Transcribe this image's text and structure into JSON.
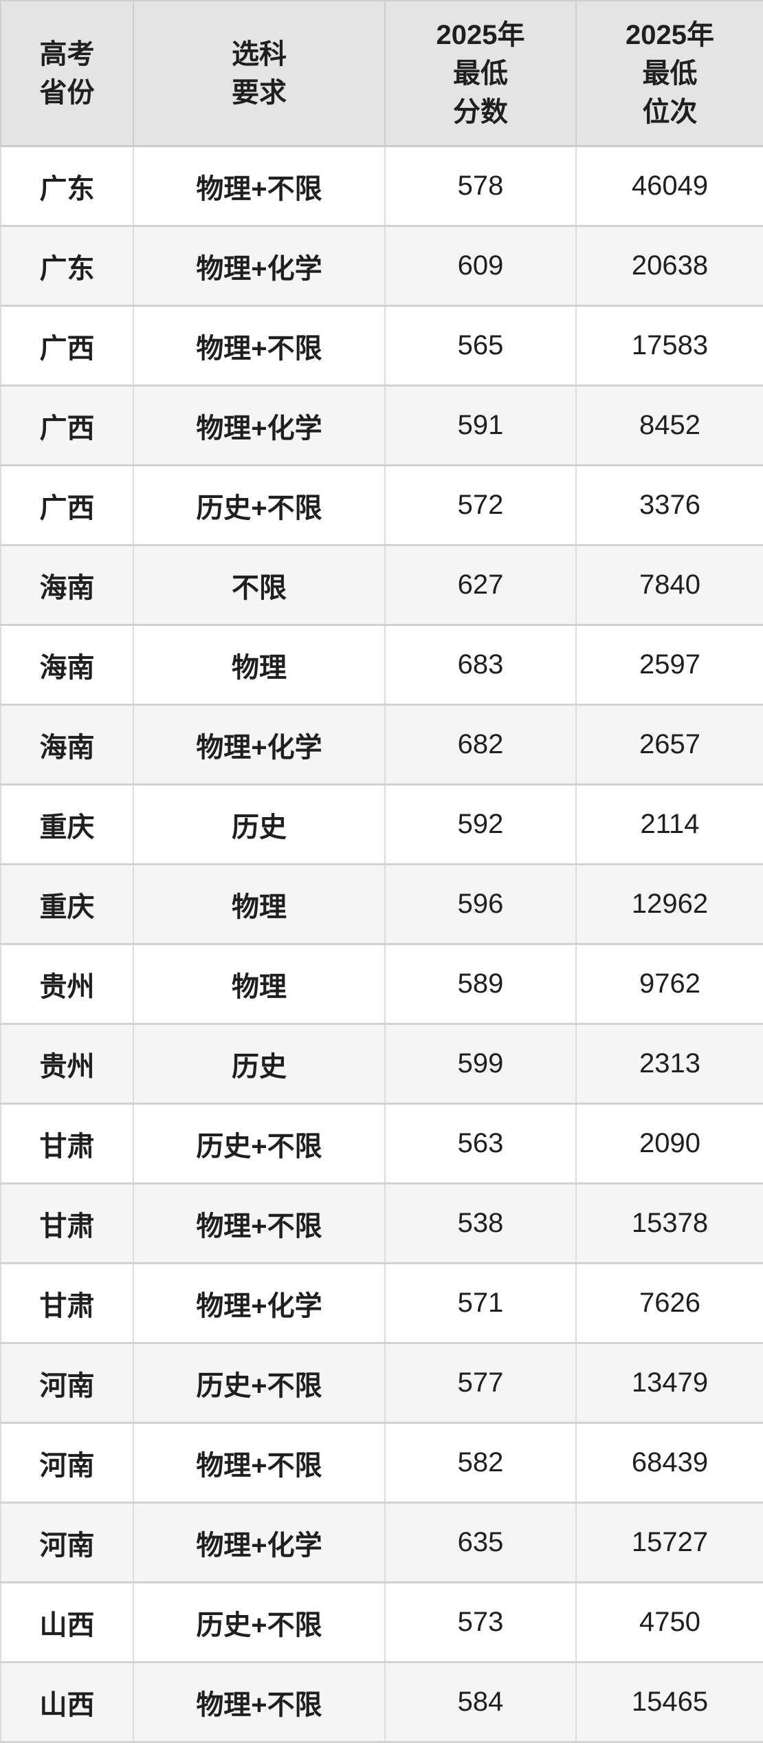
{
  "colors": {
    "header_bg": "#e4e4e4",
    "row_bg": "#ffffff",
    "row_alt_bg": "#f5f5f5",
    "border": "#d2d2d2",
    "text": "#1f1f1f"
  },
  "header": {
    "province": "高考\n省份",
    "requirement": "选科\n要求",
    "score": "2025年\n最低\n分数",
    "rank": "2025年\n最低\n位次"
  },
  "chart_data": {
    "type": "table",
    "columns": [
      "高考省份",
      "选科要求",
      "2025年最低分数",
      "2025年最低位次"
    ],
    "rows": [
      [
        "广东",
        "物理+不限",
        578,
        46049
      ],
      [
        "广东",
        "物理+化学",
        609,
        20638
      ],
      [
        "广西",
        "物理+不限",
        565,
        17583
      ],
      [
        "广西",
        "物理+化学",
        591,
        8452
      ],
      [
        "广西",
        "历史+不限",
        572,
        3376
      ],
      [
        "海南",
        "不限",
        627,
        7840
      ],
      [
        "海南",
        "物理",
        683,
        2597
      ],
      [
        "海南",
        "物理+化学",
        682,
        2657
      ],
      [
        "重庆",
        "历史",
        592,
        2114
      ],
      [
        "重庆",
        "物理",
        596,
        12962
      ],
      [
        "贵州",
        "物理",
        589,
        9762
      ],
      [
        "贵州",
        "历史",
        599,
        2313
      ],
      [
        "甘肃",
        "历史+不限",
        563,
        2090
      ],
      [
        "甘肃",
        "物理+不限",
        538,
        15378
      ],
      [
        "甘肃",
        "物理+化学",
        571,
        7626
      ],
      [
        "河南",
        "历史+不限",
        577,
        13479
      ],
      [
        "河南",
        "物理+不限",
        582,
        68439
      ],
      [
        "河南",
        "物理+化学",
        635,
        15727
      ],
      [
        "山西",
        "历史+不限",
        573,
        4750
      ],
      [
        "山西",
        "物理+不限",
        584,
        15465
      ]
    ]
  }
}
